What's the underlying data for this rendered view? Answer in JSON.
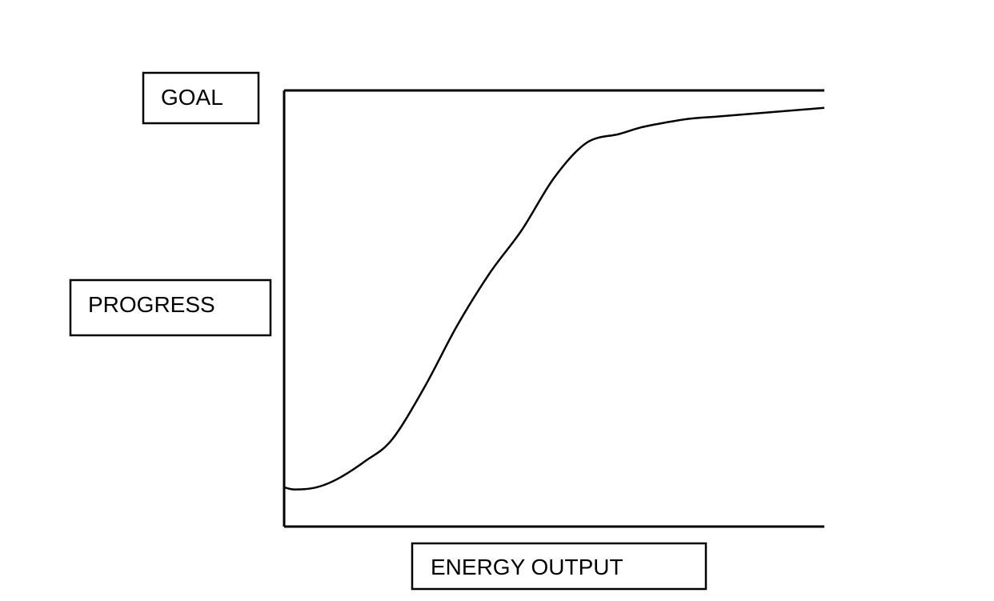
{
  "chart_data": {
    "type": "line",
    "xlabel": "ENERGY OUTPUT",
    "ylabel": "PROGRESS",
    "goal_label": "GOAL",
    "goal_value": 100,
    "xlim": [
      0,
      100
    ],
    "ylim": [
      0,
      100
    ],
    "grid": false,
    "legend": "none",
    "series": [
      {
        "x": [
          0,
          2,
          6,
          10,
          15,
          20,
          26,
          32,
          38,
          44,
          50,
          56,
          62,
          66,
          70,
          75,
          80,
          85,
          90,
          95,
          100
        ],
        "y": [
          9,
          8.5,
          9,
          11,
          15,
          20,
          32,
          46,
          58,
          68,
          80,
          88,
          90,
          91.5,
          92.5,
          93.5,
          94,
          94.5,
          95,
          95.5,
          96
        ]
      }
    ],
    "line_color": "#000000"
  }
}
